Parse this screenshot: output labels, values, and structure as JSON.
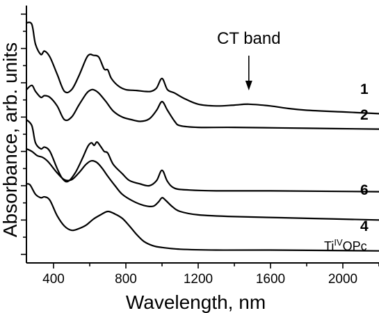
{
  "chart_data": {
    "type": "line",
    "xlabel": "Wavelength, nm",
    "ylabel": "Absorbance, arb. units",
    "xlim": [
      250,
      2200
    ],
    "x_ticks": [
      400,
      800,
      1200,
      1600,
      2000
    ],
    "y_tick_labels": false,
    "annotations": [
      {
        "text": "CT band",
        "arrow_to_x": 1480
      }
    ],
    "series": [
      {
        "name": "1",
        "points": [
          [
            250,
            2.8
          ],
          [
            280,
            2.78
          ],
          [
            300,
            2.55
          ],
          [
            330,
            2.43
          ],
          [
            350,
            2.47
          ],
          [
            380,
            2.4
          ],
          [
            420,
            2.2
          ],
          [
            460,
            2.0
          ],
          [
            500,
            2.02
          ],
          [
            540,
            2.18
          ],
          [
            580,
            2.38
          ],
          [
            600,
            2.43
          ],
          [
            620,
            2.42
          ],
          [
            650,
            2.4
          ],
          [
            680,
            2.26
          ],
          [
            700,
            2.25
          ],
          [
            720,
            2.15
          ],
          [
            760,
            2.06
          ],
          [
            800,
            2.02
          ],
          [
            860,
            2.01
          ],
          [
            900,
            2.0
          ],
          [
            940,
            2.0
          ],
          [
            970,
            2.04
          ],
          [
            1000,
            2.15
          ],
          [
            1030,
            2.02
          ],
          [
            1070,
            1.98
          ],
          [
            1120,
            1.92
          ],
          [
            1200,
            1.85
          ],
          [
            1300,
            1.83
          ],
          [
            1400,
            1.84
          ],
          [
            1480,
            1.85
          ],
          [
            1600,
            1.83
          ],
          [
            1700,
            1.8
          ],
          [
            1800,
            1.78
          ],
          [
            2000,
            1.76
          ],
          [
            2200,
            1.74
          ]
        ]
      },
      {
        "name": "2",
        "points": [
          [
            250,
            2.02
          ],
          [
            280,
            2.07
          ],
          [
            300,
            2.0
          ],
          [
            330,
            1.93
          ],
          [
            350,
            1.95
          ],
          [
            380,
            1.93
          ],
          [
            420,
            1.83
          ],
          [
            460,
            1.67
          ],
          [
            500,
            1.7
          ],
          [
            540,
            1.84
          ],
          [
            580,
            1.97
          ],
          [
            600,
            2.01
          ],
          [
            620,
            2.02
          ],
          [
            650,
            1.98
          ],
          [
            690,
            1.88
          ],
          [
            730,
            1.77
          ],
          [
            780,
            1.7
          ],
          [
            830,
            1.67
          ],
          [
            880,
            1.65
          ],
          [
            930,
            1.68
          ],
          [
            970,
            1.78
          ],
          [
            1000,
            1.88
          ],
          [
            1030,
            1.78
          ],
          [
            1070,
            1.65
          ],
          [
            1100,
            1.6
          ],
          [
            1200,
            1.58
          ],
          [
            1400,
            1.58
          ],
          [
            1800,
            1.57
          ],
          [
            2200,
            1.56
          ]
        ]
      },
      {
        "name": "6",
        "points": [
          [
            250,
            1.67
          ],
          [
            280,
            1.6
          ],
          [
            300,
            1.4
          ],
          [
            330,
            1.33
          ],
          [
            350,
            1.35
          ],
          [
            380,
            1.3
          ],
          [
            420,
            1.1
          ],
          [
            450,
            0.98
          ],
          [
            480,
            0.95
          ],
          [
            520,
            1.05
          ],
          [
            560,
            1.22
          ],
          [
            590,
            1.36
          ],
          [
            610,
            1.4
          ],
          [
            625,
            1.37
          ],
          [
            640,
            1.41
          ],
          [
            660,
            1.36
          ],
          [
            680,
            1.3
          ],
          [
            700,
            1.28
          ],
          [
            730,
            1.15
          ],
          [
            780,
            1.04
          ],
          [
            820,
            0.96
          ],
          [
            880,
            0.92
          ],
          [
            930,
            0.9
          ],
          [
            970,
            0.96
          ],
          [
            1000,
            1.08
          ],
          [
            1030,
            0.95
          ],
          [
            1070,
            0.87
          ],
          [
            1150,
            0.85
          ],
          [
            1300,
            0.84
          ],
          [
            1600,
            0.84
          ],
          [
            2200,
            0.83
          ]
        ]
      },
      {
        "name": "4",
        "points": [
          [
            250,
            1.33
          ],
          [
            280,
            1.3
          ],
          [
            310,
            1.25
          ],
          [
            340,
            1.23
          ],
          [
            370,
            1.18
          ],
          [
            420,
            1.05
          ],
          [
            460,
            0.97
          ],
          [
            500,
            0.97
          ],
          [
            540,
            1.05
          ],
          [
            580,
            1.15
          ],
          [
            610,
            1.19
          ],
          [
            640,
            1.17
          ],
          [
            670,
            1.1
          ],
          [
            700,
            1.01
          ],
          [
            740,
            0.9
          ],
          [
            780,
            0.8
          ],
          [
            840,
            0.72
          ],
          [
            900,
            0.67
          ],
          [
            950,
            0.66
          ],
          [
            980,
            0.71
          ],
          [
            1000,
            0.76
          ],
          [
            1020,
            0.73
          ],
          [
            1060,
            0.65
          ],
          [
            1100,
            0.6
          ],
          [
            1200,
            0.56
          ],
          [
            1400,
            0.54
          ],
          [
            1800,
            0.52
          ],
          [
            2200,
            0.5
          ]
        ]
      },
      {
        "name": "Ti^IV OPc",
        "points": [
          [
            250,
            0.92
          ],
          [
            270,
            0.91
          ],
          [
            300,
            0.8
          ],
          [
            330,
            0.76
          ],
          [
            350,
            0.77
          ],
          [
            380,
            0.73
          ],
          [
            420,
            0.55
          ],
          [
            460,
            0.43
          ],
          [
            500,
            0.38
          ],
          [
            540,
            0.4
          ],
          [
            580,
            0.44
          ],
          [
            620,
            0.51
          ],
          [
            660,
            0.56
          ],
          [
            700,
            0.6
          ],
          [
            740,
            0.57
          ],
          [
            780,
            0.52
          ],
          [
            820,
            0.43
          ],
          [
            860,
            0.33
          ],
          [
            900,
            0.25
          ],
          [
            950,
            0.2
          ],
          [
            1000,
            0.18
          ],
          [
            1100,
            0.16
          ],
          [
            1300,
            0.15
          ],
          [
            1600,
            0.15
          ],
          [
            2200,
            0.14
          ]
        ]
      }
    ]
  }
}
